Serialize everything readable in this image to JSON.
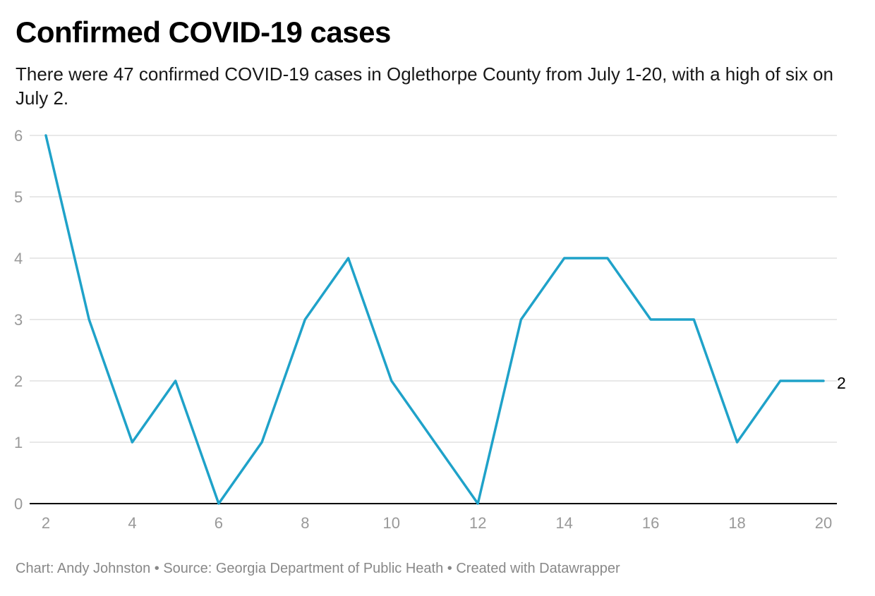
{
  "header": {
    "title": "Confirmed COVID-19 cases",
    "subtitle": "There were 47 confirmed COVID-19 cases in Oglethorpe County from July 1-20, with a high of six on July 2."
  },
  "footer": {
    "text": "Chart: Andy Johnston • Source: Georgia Department of Public Heath • Created with Datawrapper"
  },
  "colors": {
    "line": "#1fa2c9",
    "grid": "#e0e0e0",
    "axis": "#000000",
    "tick_label": "#999999",
    "end_label": "#000000"
  },
  "chart_data": {
    "type": "line",
    "title": "Confirmed COVID-19 cases",
    "subtitle": "There were 47 confirmed COVID-19 cases in Oglethorpe County from July 1-20, with a high of six on July 2.",
    "xlabel": "",
    "ylabel": "",
    "x": [
      2,
      3,
      4,
      5,
      6,
      7,
      8,
      9,
      10,
      11,
      12,
      13,
      14,
      15,
      16,
      17,
      18,
      19,
      20
    ],
    "series": [
      {
        "values": [
          6,
          3,
          1,
          2,
          0,
          1,
          3,
          4,
          2,
          1,
          0,
          3,
          4,
          4,
          3,
          3,
          1,
          2,
          2
        ]
      }
    ],
    "xlim": [
      2,
      20
    ],
    "ylim": [
      0,
      6
    ],
    "x_ticks": [
      2,
      4,
      6,
      8,
      10,
      12,
      14,
      16,
      18,
      20
    ],
    "y_ticks": [
      0,
      1,
      2,
      3,
      4,
      5,
      6
    ],
    "grid": true,
    "end_label": "2"
  }
}
